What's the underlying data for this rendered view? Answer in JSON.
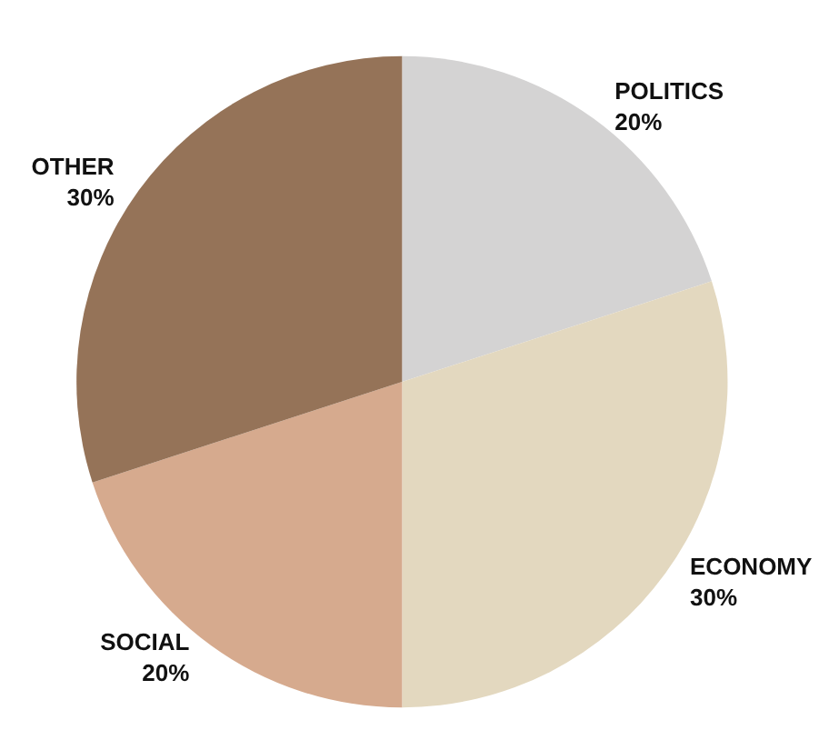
{
  "chart_data": {
    "type": "pie",
    "categories": [
      "POLITICS",
      "ECONOMY",
      "SOCIAL",
      "OTHER"
    ],
    "values": [
      20,
      30,
      20,
      30
    ],
    "value_labels": [
      "20%",
      "30%",
      "20%",
      "30%"
    ],
    "colors": [
      "#d4d3d3",
      "#e3d8bf",
      "#d6aa8e",
      "#957358"
    ],
    "legend": false
  }
}
